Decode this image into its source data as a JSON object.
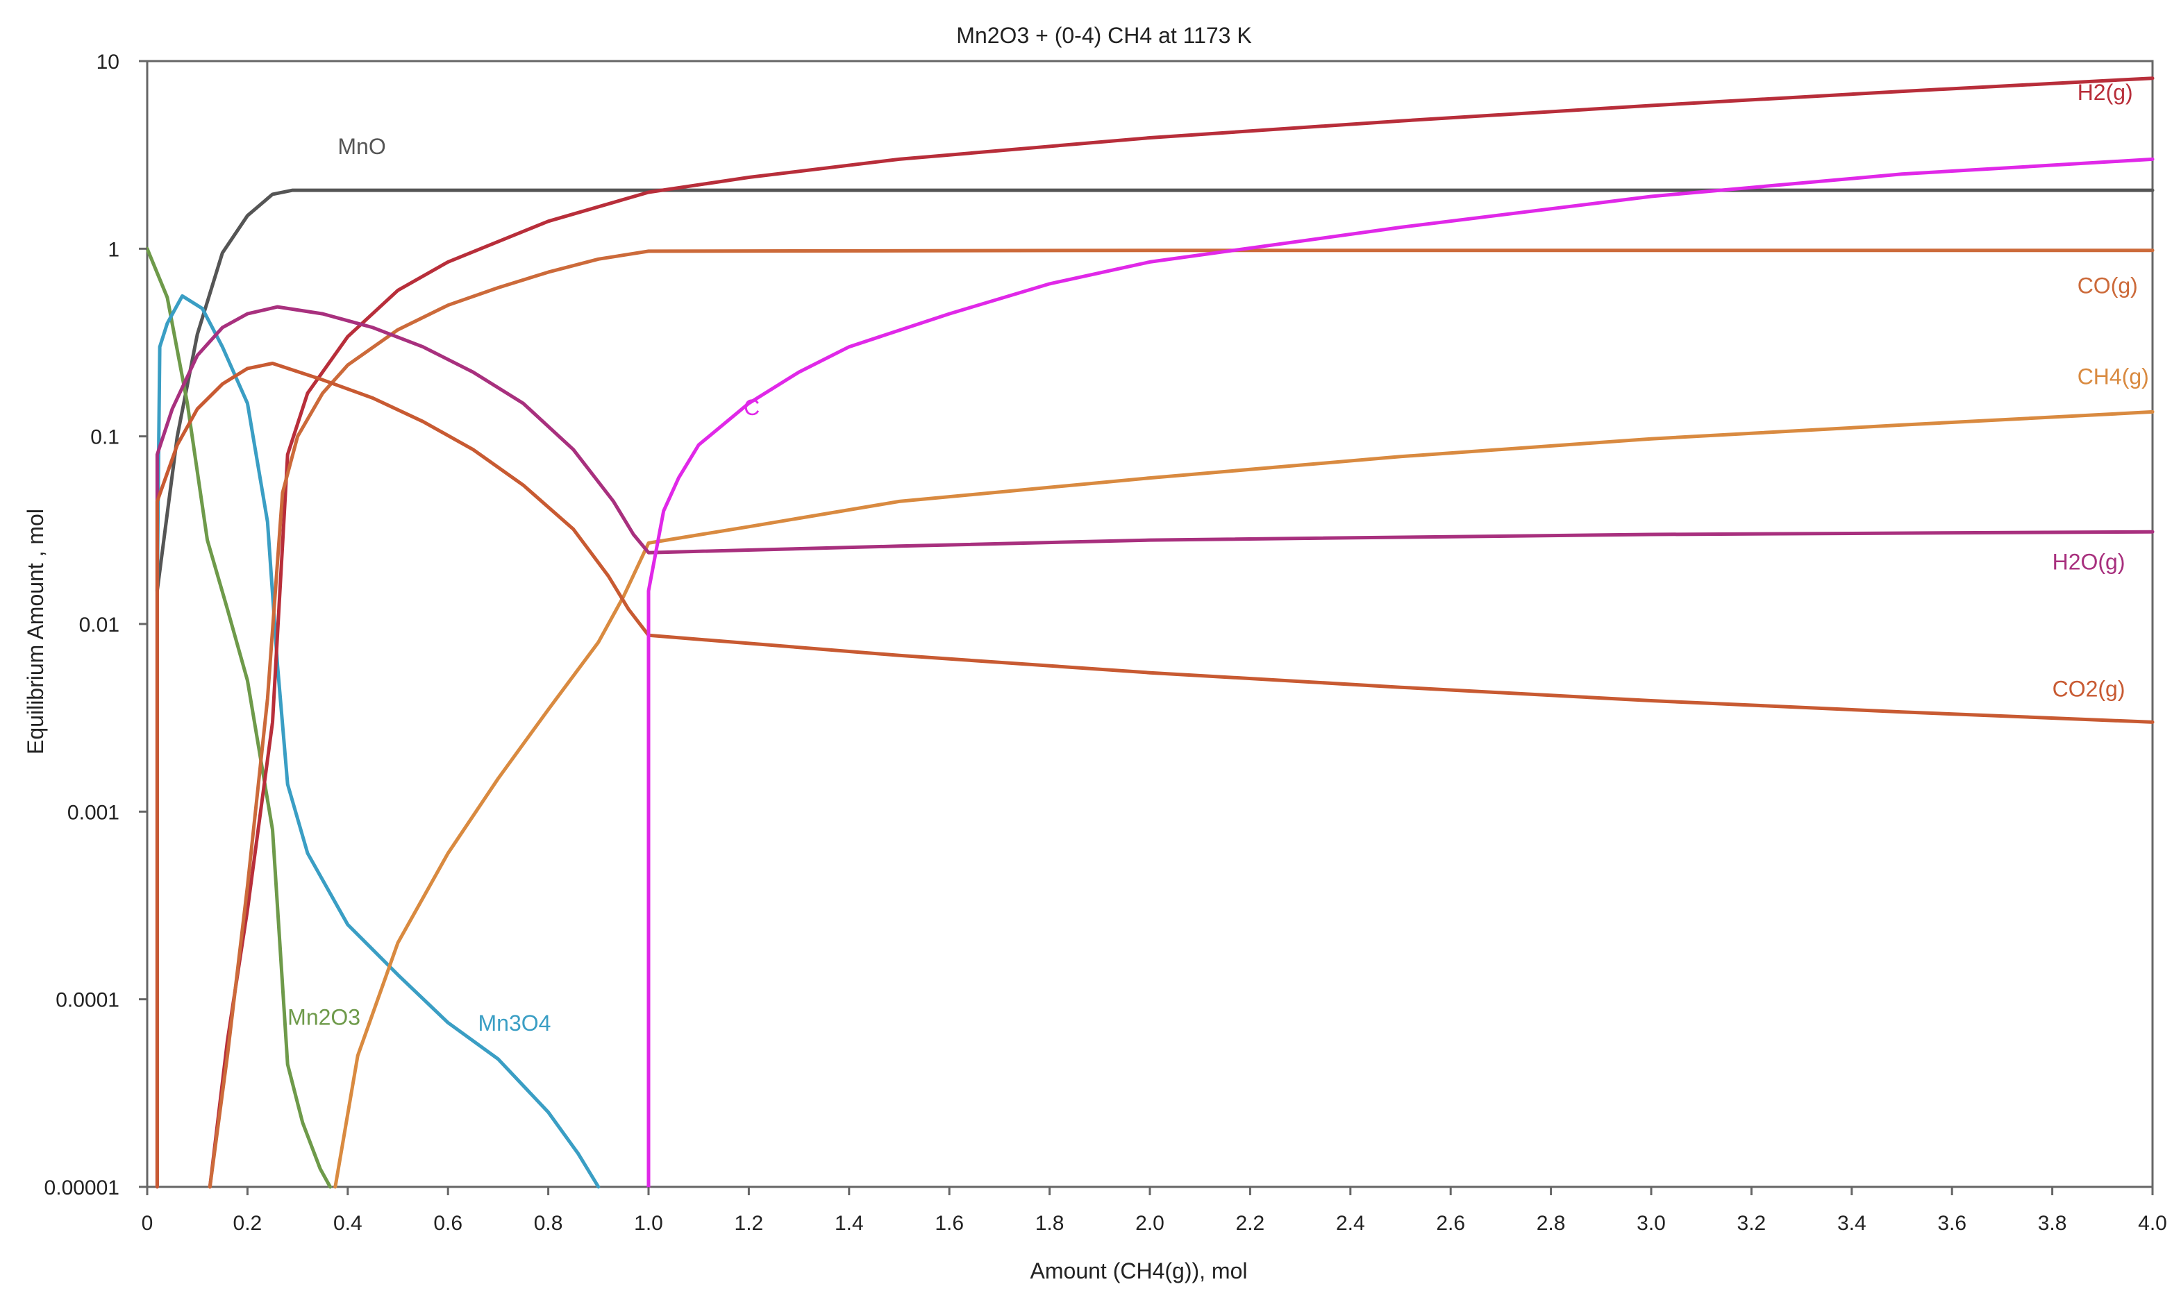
{
  "chart_data": {
    "type": "line",
    "title": "Mn2O3 + (0-4) CH4 at 1173 K",
    "xlabel": "Amount  (CH4(g)), mol",
    "ylabel": "Equilibrium Amount , mol",
    "x_scale": "linear",
    "y_scale": "log",
    "xlim": [
      0,
      4.0
    ],
    "ylim": [
      1e-05,
      10
    ],
    "grid": false,
    "legend": "none",
    "x_ticks": [
      0,
      0.2,
      0.4,
      0.6,
      0.8,
      1.0,
      1.2,
      1.4,
      1.6,
      1.8,
      2.0,
      2.2,
      2.4,
      2.6,
      2.8,
      3.0,
      3.2,
      3.4,
      3.6,
      3.8,
      4.0
    ],
    "x_tick_labels": [
      "0",
      "0.2",
      "0.4",
      "0.6",
      "0.8",
      "1.0",
      "1.2",
      "1.4",
      "1.6",
      "1.8",
      "2.0",
      "2.2",
      "2.4",
      "2.6",
      "2.8",
      "3.0",
      "3.2",
      "3.4",
      "3.6",
      "3.8",
      "4.0"
    ],
    "y_ticks": [
      1e-05,
      0.0001,
      0.001,
      0.01,
      0.1,
      1,
      10
    ],
    "y_tick_labels": [
      "0.00001",
      "0.0001",
      "0.001",
      "0.01",
      "0.1",
      "1",
      "10"
    ],
    "series": [
      {
        "name": "MnO",
        "color": "#555555",
        "label": {
          "text": "MnO",
          "x": 0.38,
          "y": 3.2
        },
        "points": [
          [
            0.02,
            0.015
          ],
          [
            0.06,
            0.1
          ],
          [
            0.1,
            0.35
          ],
          [
            0.15,
            0.95
          ],
          [
            0.2,
            1.5
          ],
          [
            0.25,
            1.95
          ],
          [
            0.29,
            2.05
          ],
          [
            0.5,
            2.05
          ],
          [
            1.0,
            2.05
          ],
          [
            2.0,
            2.05
          ],
          [
            3.0,
            2.05
          ],
          [
            4.0,
            2.05
          ]
        ]
      },
      {
        "name": "Mn2O3",
        "color": "#6e9a4a",
        "label": {
          "text": "Mn2O3",
          "x": 0.28,
          "y": 7.3e-05
        },
        "points": [
          [
            0.0,
            1.0
          ],
          [
            0.04,
            0.55
          ],
          [
            0.08,
            0.15
          ],
          [
            0.12,
            0.028
          ],
          [
            0.16,
            0.012
          ],
          [
            0.2,
            0.005
          ],
          [
            0.25,
            0.0008
          ],
          [
            0.28,
            4.5e-05
          ],
          [
            0.31,
            2.2e-05
          ],
          [
            0.345,
            1.25e-05
          ],
          [
            0.365,
            1e-05
          ]
        ]
      },
      {
        "name": "Mn3O4",
        "color": "#3a9ec4",
        "label": {
          "text": "Mn3O4",
          "x": 0.66,
          "y": 6.8e-05
        },
        "points": [
          [
            0.02,
            0.015
          ],
          [
            0.025,
            0.3
          ],
          [
            0.04,
            0.4
          ],
          [
            0.07,
            0.56
          ],
          [
            0.11,
            0.48
          ],
          [
            0.15,
            0.3
          ],
          [
            0.2,
            0.15
          ],
          [
            0.24,
            0.035
          ],
          [
            0.26,
            0.006
          ],
          [
            0.28,
            0.0014
          ],
          [
            0.32,
            0.0006
          ],
          [
            0.4,
            0.00025
          ],
          [
            0.5,
            0.000135
          ],
          [
            0.6,
            7.5e-05
          ],
          [
            0.7,
            4.8e-05
          ],
          [
            0.8,
            2.5e-05
          ],
          [
            0.86,
            1.5e-05
          ],
          [
            0.9,
            1e-05
          ]
        ]
      },
      {
        "name": "H2(g)",
        "color": "#b82e3a",
        "label": {
          "text": "H2(g)",
          "x": 3.85,
          "y": 6.2
        },
        "points": [
          [
            0.125,
            1e-05
          ],
          [
            0.16,
            6e-05
          ],
          [
            0.2,
            0.0003
          ],
          [
            0.25,
            0.003
          ],
          [
            0.28,
            0.08
          ],
          [
            0.32,
            0.17
          ],
          [
            0.4,
            0.34
          ],
          [
            0.5,
            0.6
          ],
          [
            0.6,
            0.85
          ],
          [
            0.8,
            1.4
          ],
          [
            1.0,
            2.0
          ],
          [
            1.2,
            2.4
          ],
          [
            1.5,
            3.0
          ],
          [
            2.0,
            3.9
          ],
          [
            2.5,
            4.8
          ],
          [
            3.0,
            5.8
          ],
          [
            3.5,
            6.9
          ],
          [
            4.0,
            8.1
          ]
        ]
      },
      {
        "name": "CO(g)",
        "color": "#cc6a3a",
        "label": {
          "text": "CO(g)",
          "x": 3.85,
          "y": 0.58
        },
        "points": [
          [
            0.125,
            1e-05
          ],
          [
            0.16,
            5e-05
          ],
          [
            0.2,
            0.0004
          ],
          [
            0.24,
            0.004
          ],
          [
            0.27,
            0.05
          ],
          [
            0.3,
            0.1
          ],
          [
            0.35,
            0.17
          ],
          [
            0.4,
            0.24
          ],
          [
            0.5,
            0.37
          ],
          [
            0.6,
            0.5
          ],
          [
            0.7,
            0.62
          ],
          [
            0.8,
            0.75
          ],
          [
            0.9,
            0.88
          ],
          [
            1.0,
            0.97
          ],
          [
            2.0,
            0.98
          ],
          [
            3.0,
            0.98
          ],
          [
            4.0,
            0.98
          ]
        ]
      },
      {
        "name": "CH4(g)",
        "color": "#d98a40",
        "label": {
          "text": "CH4(g)",
          "x": 3.85,
          "y": 0.19
        },
        "points": [
          [
            0.375,
            1e-05
          ],
          [
            0.42,
            5e-05
          ],
          [
            0.5,
            0.0002
          ],
          [
            0.6,
            0.0006
          ],
          [
            0.7,
            0.0015
          ],
          [
            0.8,
            0.0035
          ],
          [
            0.9,
            0.008
          ],
          [
            0.95,
            0.014
          ],
          [
            1.0,
            0.027
          ],
          [
            1.2,
            0.033
          ],
          [
            1.5,
            0.045
          ],
          [
            2.0,
            0.06
          ],
          [
            2.5,
            0.078
          ],
          [
            3.0,
            0.097
          ],
          [
            3.5,
            0.115
          ],
          [
            4.0,
            0.135
          ]
        ]
      },
      {
        "name": "H2O(g)",
        "color": "#a8307e",
        "label": {
          "text": "H2O(g)",
          "x": 3.8,
          "y": 0.0195
        },
        "points": [
          [
            0.02,
            1e-05
          ],
          [
            0.02,
            0.08
          ],
          [
            0.05,
            0.14
          ],
          [
            0.1,
            0.27
          ],
          [
            0.15,
            0.38
          ],
          [
            0.2,
            0.45
          ],
          [
            0.26,
            0.49
          ],
          [
            0.35,
            0.45
          ],
          [
            0.45,
            0.38
          ],
          [
            0.55,
            0.3
          ],
          [
            0.65,
            0.22
          ],
          [
            0.75,
            0.15
          ],
          [
            0.85,
            0.085
          ],
          [
            0.93,
            0.045
          ],
          [
            0.97,
            0.03
          ],
          [
            1.0,
            0.024
          ],
          [
            1.5,
            0.026
          ],
          [
            2.0,
            0.028
          ],
          [
            3.0,
            0.03
          ],
          [
            4.0,
            0.031
          ]
        ]
      },
      {
        "name": "CO2(g)",
        "color": "#c85a32",
        "label": {
          "text": "CO2(g)",
          "x": 3.8,
          "y": 0.0041
        },
        "points": [
          [
            0.02,
            1e-05
          ],
          [
            0.02,
            0.045
          ],
          [
            0.06,
            0.09
          ],
          [
            0.1,
            0.14
          ],
          [
            0.15,
            0.19
          ],
          [
            0.2,
            0.23
          ],
          [
            0.25,
            0.245
          ],
          [
            0.35,
            0.2
          ],
          [
            0.45,
            0.16
          ],
          [
            0.55,
            0.12
          ],
          [
            0.65,
            0.085
          ],
          [
            0.75,
            0.055
          ],
          [
            0.85,
            0.032
          ],
          [
            0.92,
            0.018
          ],
          [
            0.96,
            0.012
          ],
          [
            1.0,
            0.0087
          ],
          [
            1.5,
            0.0068
          ],
          [
            2.0,
            0.0055
          ],
          [
            2.5,
            0.0046
          ],
          [
            3.0,
            0.0039
          ],
          [
            3.5,
            0.0034
          ],
          [
            4.0,
            0.003
          ]
        ]
      },
      {
        "name": "C",
        "color": "#e028e8",
        "label": {
          "text": "C",
          "x": 1.19,
          "y": 0.13
        },
        "points": [
          [
            1.0,
            1e-05
          ],
          [
            1.0,
            0.015
          ],
          [
            1.03,
            0.04
          ],
          [
            1.06,
            0.06
          ],
          [
            1.1,
            0.09
          ],
          [
            1.2,
            0.15
          ],
          [
            1.3,
            0.22
          ],
          [
            1.4,
            0.3
          ],
          [
            1.6,
            0.45
          ],
          [
            1.8,
            0.65
          ],
          [
            2.0,
            0.85
          ],
          [
            2.5,
            1.3
          ],
          [
            3.0,
            1.9
          ],
          [
            3.5,
            2.5
          ],
          [
            4.0,
            3.0
          ]
        ]
      }
    ]
  }
}
